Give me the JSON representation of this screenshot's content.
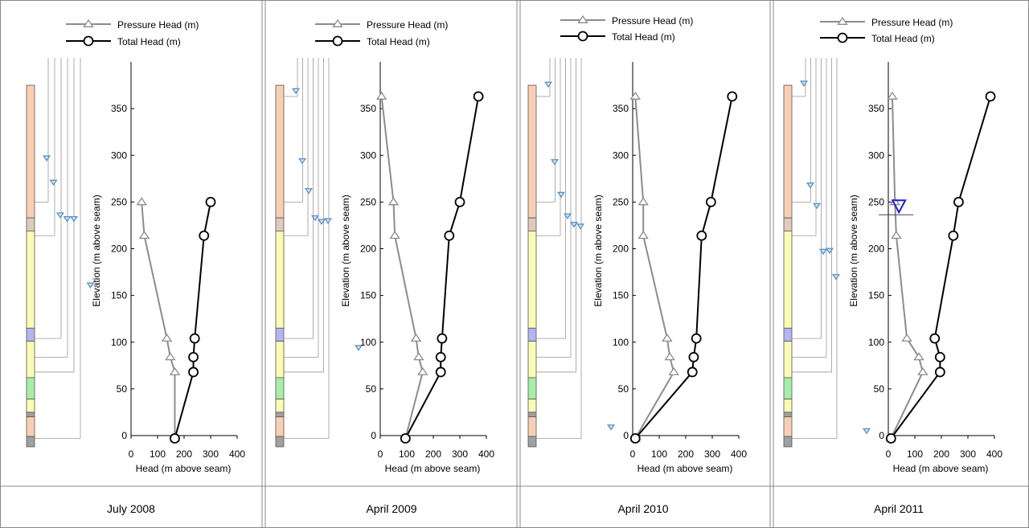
{
  "chart_data": [
    {
      "type": "line",
      "caption": "July 2008",
      "xlabel": "Head (m above seam)",
      "ylabel": "Elevation (m above seam)",
      "xlim": [
        0,
        400
      ],
      "ylim": [
        0,
        400
      ],
      "x_ticks": [
        "0",
        "100",
        "200",
        "300",
        "400"
      ],
      "y_ticks": [
        "0",
        "50",
        "100",
        "150",
        "200",
        "250",
        "300",
        "350"
      ],
      "series": [
        {
          "name": "Pressure Head (m)",
          "marker": "triangle",
          "color": "#8c8c8c",
          "points": [
            [
              40,
              250
            ],
            [
              50,
              214
            ],
            [
              135,
              104
            ],
            [
              148,
              84
            ],
            [
              165,
              68
            ],
            [
              165,
              -3
            ]
          ]
        },
        {
          "name": "Total Head (m)",
          "marker": "circle",
          "color": "#000000",
          "points": [
            [
              300,
              250
            ],
            [
              275,
              214
            ],
            [
              240,
              104
            ],
            [
              235,
              84
            ],
            [
              235,
              68
            ],
            [
              165,
              -3
            ]
          ]
        }
      ],
      "water_levels": [
        297,
        271,
        236,
        232,
        232,
        161
      ]
    },
    {
      "type": "line",
      "caption": "April 2009",
      "xlabel": "Head (m above seam)",
      "ylabel": "Elevation (m above seam)",
      "xlim": [
        0,
        400
      ],
      "ylim": [
        0,
        400
      ],
      "x_ticks": [
        "0",
        "100",
        "200",
        "300",
        "400"
      ],
      "y_ticks": [
        "0",
        "50",
        "100",
        "150",
        "200",
        "250",
        "300",
        "350"
      ],
      "series": [
        {
          "name": "Pressure Head (m)",
          "marker": "triangle",
          "color": "#8c8c8c",
          "points": [
            [
              5,
              363
            ],
            [
              50,
              250
            ],
            [
              55,
              214
            ],
            [
              135,
              104
            ],
            [
              145,
              84
            ],
            [
              160,
              68
            ],
            [
              95,
              -3
            ]
          ]
        },
        {
          "name": "Total Head (m)",
          "marker": "circle",
          "color": "#000000",
          "points": [
            [
              370,
              363
            ],
            [
              300,
              250
            ],
            [
              260,
              214
            ],
            [
              233,
              104
            ],
            [
              228,
              84
            ],
            [
              228,
              68
            ],
            [
              95,
              -3
            ]
          ]
        }
      ],
      "water_levels": [
        369,
        294,
        262,
        233,
        229,
        230,
        94
      ]
    },
    {
      "type": "line",
      "caption": "April 2010",
      "xlabel": "Head (m above seam)",
      "ylabel": "Elevation (m above seam)",
      "xlim": [
        0,
        400
      ],
      "ylim": [
        0,
        400
      ],
      "x_ticks": [
        "0",
        "100",
        "200",
        "300",
        "400"
      ],
      "y_ticks": [
        "0",
        "50",
        "100",
        "150",
        "200",
        "250",
        "300",
        "350"
      ],
      "series": [
        {
          "name": "Pressure Head (m)",
          "marker": "triangle",
          "color": "#8c8c8c",
          "points": [
            [
              10,
              363
            ],
            [
              40,
              250
            ],
            [
              40,
              214
            ],
            [
              130,
              104
            ],
            [
              140,
              84
            ],
            [
              155,
              68
            ],
            [
              10,
              -3
            ]
          ]
        },
        {
          "name": "Total Head (m)",
          "marker": "circle",
          "color": "#000000",
          "points": [
            [
              375,
              363
            ],
            [
              295,
              250
            ],
            [
              260,
              214
            ],
            [
              240,
              104
            ],
            [
              230,
              84
            ],
            [
              225,
              68
            ],
            [
              10,
              -3
            ]
          ]
        }
      ],
      "water_levels": [
        376,
        293,
        258,
        235,
        226,
        224,
        9
      ]
    },
    {
      "type": "line",
      "caption": "April 2011",
      "xlabel": "Head (m above seam)",
      "ylabel": "Elevation (m above seam)",
      "xlim": [
        0,
        400
      ],
      "ylim": [
        0,
        400
      ],
      "x_ticks": [
        "0",
        "100",
        "200",
        "300",
        "400"
      ],
      "y_ticks": [
        "0",
        "50",
        "100",
        "150",
        "200",
        "250",
        "300",
        "350"
      ],
      "series": [
        {
          "name": "Pressure Head (m)",
          "marker": "triangle",
          "color": "#8c8c8c",
          "points": [
            [
              15,
              363
            ],
            [
              25,
              250
            ],
            [
              30,
              214
            ],
            [
              70,
              104
            ],
            [
              115,
              84
            ],
            [
              130,
              68
            ],
            [
              10,
              -3
            ]
          ]
        },
        {
          "name": "Total Head (m)",
          "marker": "circle",
          "color": "#000000",
          "points": [
            [
              385,
              363
            ],
            [
              265,
              250
            ],
            [
              245,
              214
            ],
            [
              175,
              104
            ],
            [
              195,
              84
            ],
            [
              195,
              68
            ],
            [
              10,
              -3
            ]
          ]
        }
      ],
      "water_levels": [
        377,
        268,
        246,
        197,
        198,
        170,
        5
      ],
      "water_table": {
        "x": 40,
        "y": 245
      }
    }
  ],
  "strata": [
    {
      "top": 375,
      "bottom": 233,
      "color": "#f9cfb4"
    },
    {
      "top": 233,
      "bottom": 219,
      "color": "#ddccbb"
    },
    {
      "top": 219,
      "bottom": 115,
      "color": "#fbfbb6"
    },
    {
      "top": 115,
      "bottom": 101,
      "color": "#b4b4f0"
    },
    {
      "top": 101,
      "bottom": 62,
      "color": "#fbfbb6"
    },
    {
      "top": 62,
      "bottom": 39,
      "color": "#a8eca8"
    },
    {
      "top": 39,
      "bottom": 25,
      "color": "#fbfbb6"
    },
    {
      "top": 25,
      "bottom": 20,
      "color": "#a0a0a0"
    },
    {
      "top": 20,
      "bottom": -1,
      "color": "#f9cfb4"
    },
    {
      "top": -1,
      "bottom": -12,
      "color": "#a0a0a0"
    }
  ],
  "colors": {
    "pressure": "#8c8c8c",
    "total": "#000000",
    "piezometer": "#5a8fc2",
    "water_table": "#1f1fd6",
    "border": "#888888"
  }
}
